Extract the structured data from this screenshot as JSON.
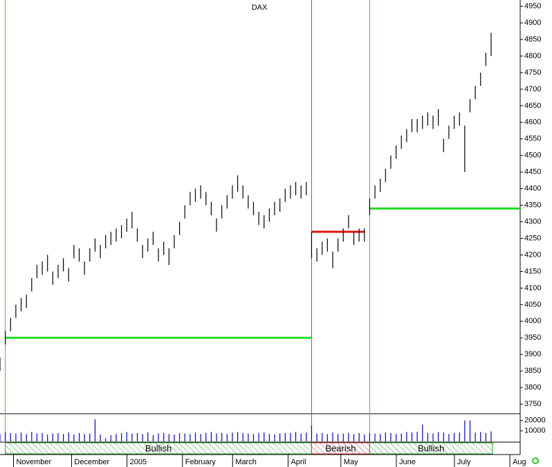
{
  "chart_data": {
    "type": "ohlc",
    "title": "DAX",
    "xlim": [
      0,
      197
    ],
    "ylim": [
      3721,
      4969
    ],
    "yticks": [
      3750,
      3800,
      3850,
      3900,
      3950,
      4000,
      4050,
      4100,
      4150,
      4200,
      4250,
      4300,
      4350,
      4400,
      4450,
      4500,
      4550,
      4600,
      4650,
      4700,
      4750,
      4800,
      4850,
      4900,
      4950
    ],
    "xticks": [
      {
        "value": 3,
        "label": "November"
      },
      {
        "value": 25,
        "label": "December"
      },
      {
        "value": 46,
        "label": "2005"
      },
      {
        "value": 67,
        "label": "February"
      },
      {
        "value": 86,
        "label": "March"
      },
      {
        "value": 107,
        "label": "April"
      },
      {
        "value": 127,
        "label": "May"
      },
      {
        "value": 148,
        "label": "June"
      },
      {
        "value": 170,
        "label": "July"
      },
      {
        "value": 191,
        "label": "Aug"
      }
    ],
    "x": [
      0,
      2,
      4,
      6,
      8,
      10,
      12,
      14,
      16,
      18,
      20,
      22,
      24,
      26,
      28,
      30,
      32,
      34,
      36,
      38,
      40,
      42,
      44,
      46,
      48,
      50,
      52,
      54,
      56,
      58,
      60,
      62,
      64,
      66,
      68,
      70,
      72,
      74,
      76,
      78,
      80,
      82,
      84,
      86,
      88,
      90,
      92,
      94,
      96,
      98,
      100,
      102,
      104,
      106,
      108,
      110,
      112,
      114,
      116,
      118,
      120,
      122,
      124,
      126,
      128,
      130,
      132,
      134,
      136,
      138,
      140,
      142,
      144,
      146,
      148,
      150,
      152,
      154,
      156,
      158,
      160,
      162,
      164,
      166,
      168,
      170,
      172,
      174,
      176,
      178,
      180,
      182,
      184,
      186
    ],
    "high": [
      3890,
      3970,
      4010,
      4050,
      4070,
      4080,
      4130,
      4170,
      4180,
      4200,
      4150,
      4170,
      4190,
      4160,
      4230,
      4220,
      4180,
      4220,
      4250,
      4230,
      4260,
      4270,
      4280,
      4290,
      4310,
      4330,
      4280,
      4230,
      4250,
      4270,
      4220,
      4240,
      4220,
      4260,
      4300,
      4350,
      4390,
      4400,
      4410,
      4390,
      4360,
      4310,
      4350,
      4380,
      4410,
      4440,
      4410,
      4380,
      4360,
      4330,
      4320,
      4340,
      4360,
      4370,
      4400,
      4410,
      4420,
      4410,
      4420,
      4270,
      4220,
      4240,
      4250,
      4210,
      4250,
      4280,
      4320,
      4270,
      4280,
      4280,
      4370,
      4410,
      4430,
      4460,
      4500,
      4530,
      4560,
      4580,
      4610,
      4610,
      4620,
      4630,
      4620,
      4640,
      4550,
      4590,
      4620,
      4630,
      4590,
      4670,
      4710,
      4750,
      4810,
      4870
    ],
    "low": [
      3850,
      3930,
      3970,
      4010,
      4030,
      4040,
      4090,
      4130,
      4140,
      4150,
      4110,
      4130,
      4150,
      4120,
      4190,
      4180,
      4140,
      4180,
      4210,
      4190,
      4220,
      4230,
      4240,
      4250,
      4270,
      4280,
      4240,
      4190,
      4210,
      4230,
      4180,
      4200,
      4170,
      4220,
      4260,
      4310,
      4350,
      4360,
      4370,
      4350,
      4320,
      4270,
      4310,
      4340,
      4370,
      4390,
      4370,
      4340,
      4320,
      4290,
      4280,
      4300,
      4320,
      4330,
      4360,
      4370,
      4380,
      4370,
      4380,
      4190,
      4180,
      4200,
      4210,
      4160,
      4210,
      4240,
      4280,
      4230,
      4240,
      4240,
      4320,
      4370,
      4390,
      4420,
      4460,
      4490,
      4520,
      4540,
      4570,
      4570,
      4580,
      4590,
      4580,
      4590,
      4510,
      4550,
      4580,
      4590,
      4450,
      4630,
      4670,
      4710,
      4770,
      4800
    ],
    "volume": {
      "ylim": [
        0,
        25000
      ],
      "yticks": [
        10000,
        20000
      ],
      "color": "#0000cc",
      "values": [
        7000,
        9000,
        8000,
        7500,
        8500,
        7000,
        9000,
        7500,
        8000,
        6500,
        7500,
        8000,
        7000,
        8500,
        6500,
        8000,
        7000,
        7500,
        21000,
        6500,
        3000,
        6000,
        7000,
        8000,
        9000,
        7500,
        8000,
        7000,
        8500,
        6000,
        7500,
        8000,
        7000,
        6500,
        8000,
        7500,
        7000,
        8500,
        7000,
        8000,
        9000,
        7500,
        8000,
        7000,
        8500,
        9000,
        8000,
        7500,
        7000,
        8000,
        8500,
        7000,
        6500,
        7500,
        8000,
        8000,
        9000,
        7500,
        8500,
        15000,
        7500,
        8000,
        7000,
        8500,
        7000,
        7500,
        8000,
        7000,
        8000,
        6500,
        8000,
        7500,
        7000,
        8500,
        8000,
        7000,
        7500,
        9000,
        8500,
        9000,
        16000,
        8000,
        7500,
        9000,
        8500,
        7000,
        8000,
        8500,
        20000,
        20000,
        8500,
        9000,
        8000,
        9500
      ]
    },
    "bands": [
      {
        "label": "Bullish",
        "from": 2,
        "to": 118,
        "color": "#2e9e2e"
      },
      {
        "label": "Bearish",
        "from": 118,
        "to": 140,
        "color": "#cc3333"
      },
      {
        "label": "Bullish",
        "from": 140,
        "to": 186.5,
        "color": "#2e9e2e"
      }
    ],
    "signals": [
      {
        "x": 2,
        "color": "#33cc33"
      },
      {
        "x": 118,
        "color": "#cc3366"
      },
      {
        "x": 140,
        "color": "#33cc33"
      }
    ],
    "levels": [
      {
        "value": 3950,
        "from": 2,
        "to": 118,
        "color": "#22dd22"
      },
      {
        "value": 4270,
        "from": 118,
        "to": 138,
        "color": "#dd1111"
      },
      {
        "value": 4340,
        "from": 140,
        "to": 197,
        "color": "#22dd22"
      }
    ],
    "bar_color": "#000000"
  }
}
